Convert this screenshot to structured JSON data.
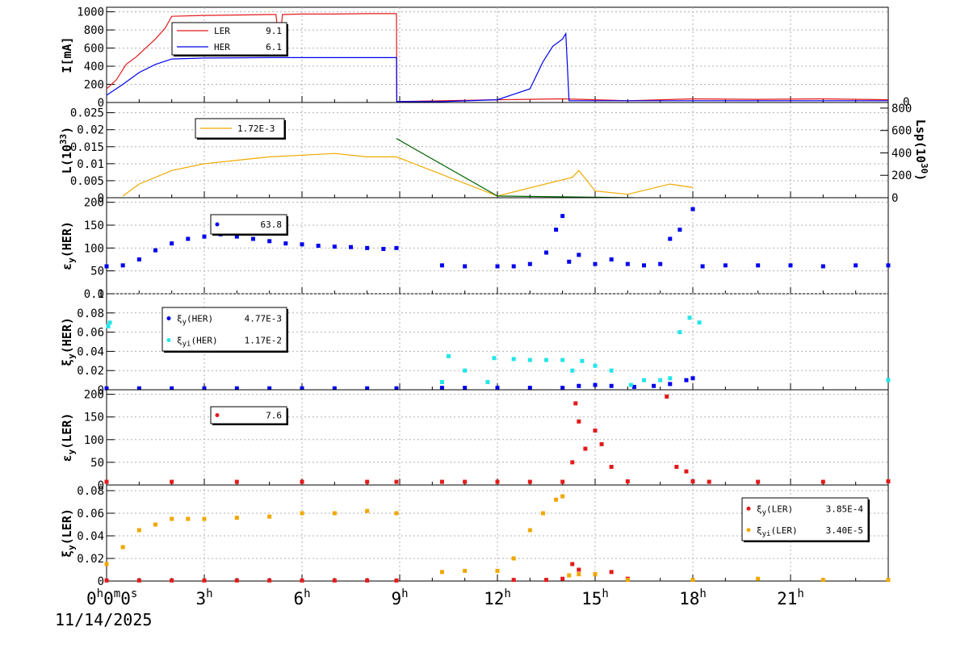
{
  "date_label": "11/14/2025",
  "origin_label": {
    "main": [
      "0",
      "0",
      "0"
    ],
    "sup": [
      "h",
      "m",
      "s"
    ]
  },
  "x_ticks": [
    {
      "t": 0,
      "label": ""
    },
    {
      "t": 3,
      "label": "3",
      "sup": "h"
    },
    {
      "t": 6,
      "label": "6",
      "sup": "h"
    },
    {
      "t": 9,
      "label": "9",
      "sup": "h"
    },
    {
      "t": 12,
      "label": "12",
      "sup": "h"
    },
    {
      "t": 15,
      "label": "15",
      "sup": "h"
    },
    {
      "t": 18,
      "label": "18",
      "sup": "h"
    },
    {
      "t": 21,
      "label": "21",
      "sup": "h"
    }
  ],
  "colors": {
    "red": "#e31a1c",
    "blue": "#0000ee",
    "orange": "#f0a800",
    "cyan": "#22e6e6",
    "green": "#006400",
    "grid": "#b0b0b0"
  },
  "chart_data": [
    {
      "type": "line",
      "ylabel": "I[mA]",
      "ylim": [
        0,
        1050
      ],
      "yticks": [
        "0",
        "200",
        "400",
        "600",
        "800",
        "1000"
      ],
      "ytick_values": [
        0,
        200,
        400,
        600,
        800,
        1000
      ],
      "ylabel_right_zero": "0",
      "legend": [
        {
          "name": "LER",
          "value": "9.1",
          "color": "#e31a1c",
          "marker": "line"
        },
        {
          "name": "HER",
          "value": "6.1",
          "color": "#0000ee",
          "marker": "line"
        }
      ],
      "series": [
        {
          "name": "LER",
          "color": "#e31a1c",
          "x": [
            0,
            0.3,
            0.6,
            0.9,
            1.2,
            1.5,
            1.8,
            2.0,
            3.0,
            4.0,
            5.0,
            5.2,
            5.25,
            5.35,
            5.4,
            6.0,
            7.0,
            8.0,
            8.9,
            8.91,
            10.3,
            12,
            14,
            15,
            16,
            18,
            20,
            22,
            24
          ],
          "y": [
            150,
            250,
            420,
            500,
            600,
            700,
            820,
            950,
            960,
            965,
            970,
            970,
            800,
            790,
            970,
            975,
            975,
            980,
            980,
            10,
            20,
            30,
            40,
            30,
            20,
            40,
            35,
            40,
            30
          ]
        },
        {
          "name": "HER",
          "color": "#0000ee",
          "x": [
            0,
            0.5,
            1.0,
            1.5,
            2.0,
            3.0,
            5.0,
            7.0,
            8.9,
            8.91,
            10.3,
            12,
            13.0,
            13.4,
            13.7,
            14.0,
            14.1,
            14.2,
            15.0,
            17.0,
            20.0,
            24.0
          ],
          "y": [
            80,
            200,
            330,
            420,
            480,
            490,
            495,
            495,
            495,
            10,
            10,
            30,
            150,
            450,
            620,
            700,
            760,
            20,
            20,
            20,
            20,
            20
          ]
        }
      ]
    },
    {
      "type": "line",
      "ylabel": "L(10",
      "ylabel_sup": "33",
      "ylabel_close": ")",
      "ylim": [
        0,
        0.028
      ],
      "yticks": [
        "0",
        "0.005",
        "0.01",
        "0.015",
        "0.02",
        "0.025"
      ],
      "ytick_values": [
        0,
        0.005,
        0.01,
        0.015,
        0.02,
        0.025
      ],
      "right_axis": {
        "label": "Lsp(10",
        "label_sup": "30",
        "label_close": ")",
        "ylim": [
          0,
          850
        ],
        "ticks": [
          "0",
          "200",
          "400",
          "600",
          "800"
        ],
        "tick_values": [
          0,
          200,
          400,
          600,
          800
        ]
      },
      "legend": [
        {
          "name": "1.72E-3",
          "value": "",
          "color": "#f0a800",
          "marker": "line"
        }
      ],
      "series": [
        {
          "name": "luminosity",
          "color": "#f0a800",
          "x": [
            0.5,
            1.0,
            2.0,
            3.0,
            4.0,
            5.0,
            6.0,
            7.0,
            8.0,
            8.9,
            12.0,
            14.3,
            14.5,
            15.0,
            16.0,
            17.3,
            18.0
          ],
          "y": [
            0.0005,
            0.004,
            0.008,
            0.01,
            0.011,
            0.012,
            0.0125,
            0.013,
            0.012,
            0.012,
            0.0005,
            0.006,
            0.008,
            0.002,
            0.001,
            0.004,
            0.003
          ]
        },
        {
          "name": "specific",
          "color": "#006400",
          "x": [
            8.9,
            12.0,
            16.2
          ],
          "y": [
            0.0174,
            0.0005,
            0.0
          ]
        }
      ]
    },
    {
      "type": "scatter",
      "ylabel": "ε",
      "ylabel_sub": "y",
      "ylabel_rest": "(HER)",
      "ylim": [
        0,
        210
      ],
      "yticks": [
        "0",
        "50",
        "100",
        "150",
        "200"
      ],
      "ytick_values": [
        0,
        50,
        100,
        150,
        200
      ],
      "legend": [
        {
          "name": "",
          "value": "63.8",
          "color": "#0000ee",
          "marker": "dot"
        }
      ],
      "series": [
        {
          "name": "HER",
          "color": "#0000ee",
          "x": [
            0,
            0.5,
            1.0,
            1.5,
            2.0,
            2.5,
            3.0,
            3.5,
            4.0,
            4.5,
            5.0,
            5.5,
            6.0,
            6.5,
            7.0,
            7.5,
            8.0,
            8.5,
            8.9,
            10.3,
            11.0,
            12.0,
            12.5,
            13.0,
            13.5,
            13.8,
            14.0,
            14.2,
            14.5,
            15.0,
            15.5,
            16.0,
            16.5,
            17.0,
            17.3,
            17.6,
            18.0,
            18.3,
            19.0,
            20.0,
            21.0,
            22.0,
            23.0,
            24.0
          ],
          "y": [
            60,
            62,
            75,
            95,
            110,
            120,
            125,
            130,
            125,
            120,
            115,
            110,
            108,
            105,
            103,
            102,
            100,
            98,
            100,
            62,
            60,
            60,
            60,
            65,
            90,
            140,
            170,
            70,
            85,
            65,
            75,
            65,
            62,
            65,
            120,
            140,
            185,
            60,
            62,
            62,
            62,
            60,
            62,
            62
          ]
        }
      ]
    },
    {
      "type": "scatter",
      "ylabel": "ξ",
      "ylabel_sub": "y",
      "ylabel_rest": "(HER)",
      "ylim": [
        0,
        0.1
      ],
      "yticks": [
        "0",
        "0.02",
        "0.04",
        "0.06",
        "0.08",
        "0.1"
      ],
      "ytick_values": [
        0,
        0.02,
        0.04,
        0.06,
        0.08,
        0.1
      ],
      "legend": [
        {
          "name": "ξ",
          "sub": "y",
          "rest": "(HER)",
          "value": "4.77E-3",
          "color": "#0000ee",
          "marker": "dot"
        },
        {
          "name": "ξ",
          "sub": "yi",
          "rest": "(HER)",
          "value": "1.17E-2",
          "color": "#22e6e6",
          "marker": "dot"
        }
      ],
      "series": [
        {
          "name": "ξy(HER)",
          "color": "#0000ee",
          "x": [
            0,
            1,
            2,
            3,
            4,
            5,
            6,
            7,
            8,
            8.9,
            10.3,
            11,
            12,
            13,
            14,
            14.5,
            15,
            15.5,
            16.2,
            16.8,
            17.3,
            17.8,
            18.0
          ],
          "y": [
            0.0015,
            0.0015,
            0.0015,
            0.0015,
            0.0015,
            0.0015,
            0.0015,
            0.0015,
            0.0015,
            0.0015,
            0.002,
            0.002,
            0.002,
            0.002,
            0.002,
            0.004,
            0.005,
            0.004,
            0.003,
            0.004,
            0.006,
            0.01,
            0.012
          ]
        },
        {
          "name": "ξyi(HER)",
          "color": "#22e6e6",
          "x": [
            0.05,
            0.1,
            10.3,
            10.5,
            11.0,
            11.7,
            11.9,
            12.5,
            13.0,
            13.5,
            14.0,
            14.3,
            14.6,
            15.0,
            15.5,
            16.1,
            16.5,
            17.0,
            17.3,
            17.6,
            17.9,
            18.2,
            24.0
          ],
          "y": [
            0.066,
            0.07,
            0.008,
            0.035,
            0.02,
            0.008,
            0.033,
            0.032,
            0.031,
            0.031,
            0.031,
            0.02,
            0.03,
            0.025,
            0.02,
            0.005,
            0.01,
            0.01,
            0.012,
            0.06,
            0.075,
            0.07,
            0.01
          ]
        }
      ]
    },
    {
      "type": "scatter",
      "ylabel": "ε",
      "ylabel_sub": "y",
      "ylabel_rest": "(LER)",
      "ylim": [
        0,
        210
      ],
      "yticks": [
        "0",
        "50",
        "100",
        "150",
        "200"
      ],
      "ytick_values": [
        0,
        50,
        100,
        150,
        200
      ],
      "legend": [
        {
          "name": "",
          "value": "7.6",
          "color": "#e31a1c",
          "marker": "dot"
        }
      ],
      "series": [
        {
          "name": "LER",
          "color": "#e31a1c",
          "x": [
            0,
            2,
            4,
            6,
            8,
            8.9,
            10.3,
            11,
            12,
            13,
            14,
            14.3,
            14.4,
            14.5,
            14.7,
            15,
            15.2,
            15.5,
            16,
            17.2,
            17.5,
            17.8,
            18,
            18.5,
            20,
            22,
            24
          ],
          "y": [
            7,
            7,
            7,
            7,
            7,
            7,
            7,
            7,
            7,
            7,
            7,
            50,
            180,
            140,
            80,
            120,
            90,
            40,
            8,
            195,
            40,
            30,
            8,
            7,
            7,
            7,
            8
          ]
        }
      ]
    },
    {
      "type": "scatter",
      "ylabel": "ξ",
      "ylabel_sub": "y",
      "ylabel_rest": "(LER)",
      "ylim": [
        0,
        0.085
      ],
      "yticks": [
        "0",
        "0.02",
        "0.04",
        "0.06",
        "0.08"
      ],
      "ytick_values": [
        0,
        0.02,
        0.04,
        0.06,
        0.08
      ],
      "legend": [
        {
          "name": "ξ",
          "sub": "y",
          "rest": "(LER)",
          "value": "3.85E-4",
          "color": "#e31a1c",
          "marker": "dot"
        },
        {
          "name": "ξ",
          "sub": "yi",
          "rest": "(LER)",
          "value": "3.40E-5",
          "color": "#f0a800",
          "marker": "dot"
        }
      ],
      "series": [
        {
          "name": "ξy(LER)",
          "color": "#e31a1c",
          "x": [
            0,
            1,
            2,
            3,
            4,
            5,
            6,
            7,
            8,
            8.9,
            12.5,
            13.5,
            14.0,
            14.3,
            14.5,
            15.0,
            15.5,
            16.0
          ],
          "y": [
            0.0005,
            0.0005,
            0.0005,
            0.0005,
            0.0005,
            0.0005,
            0.0005,
            0.0005,
            0.0005,
            0.0005,
            0.001,
            0.001,
            0.002,
            0.015,
            0.01,
            0.006,
            0.008,
            0.002
          ]
        },
        {
          "name": "ξyi(LER)",
          "color": "#f0a800",
          "x": [
            0,
            0.5,
            1.0,
            1.5,
            2.0,
            2.5,
            3.0,
            4.0,
            5.0,
            6.0,
            7.0,
            8.0,
            8.9,
            10.3,
            11.0,
            12.0,
            12.5,
            13.0,
            13.4,
            13.8,
            14.0,
            14.2,
            14.5,
            15.0,
            16.0,
            18.0,
            20.0,
            22.0,
            24.0
          ],
          "y": [
            0.015,
            0.03,
            0.045,
            0.05,
            0.055,
            0.055,
            0.055,
            0.056,
            0.057,
            0.06,
            0.06,
            0.062,
            0.06,
            0.008,
            0.009,
            0.009,
            0.02,
            0.045,
            0.06,
            0.072,
            0.075,
            0.005,
            0.006,
            0.006,
            0.001,
            0.001,
            0.002,
            0.001,
            0.001
          ]
        }
      ]
    }
  ]
}
